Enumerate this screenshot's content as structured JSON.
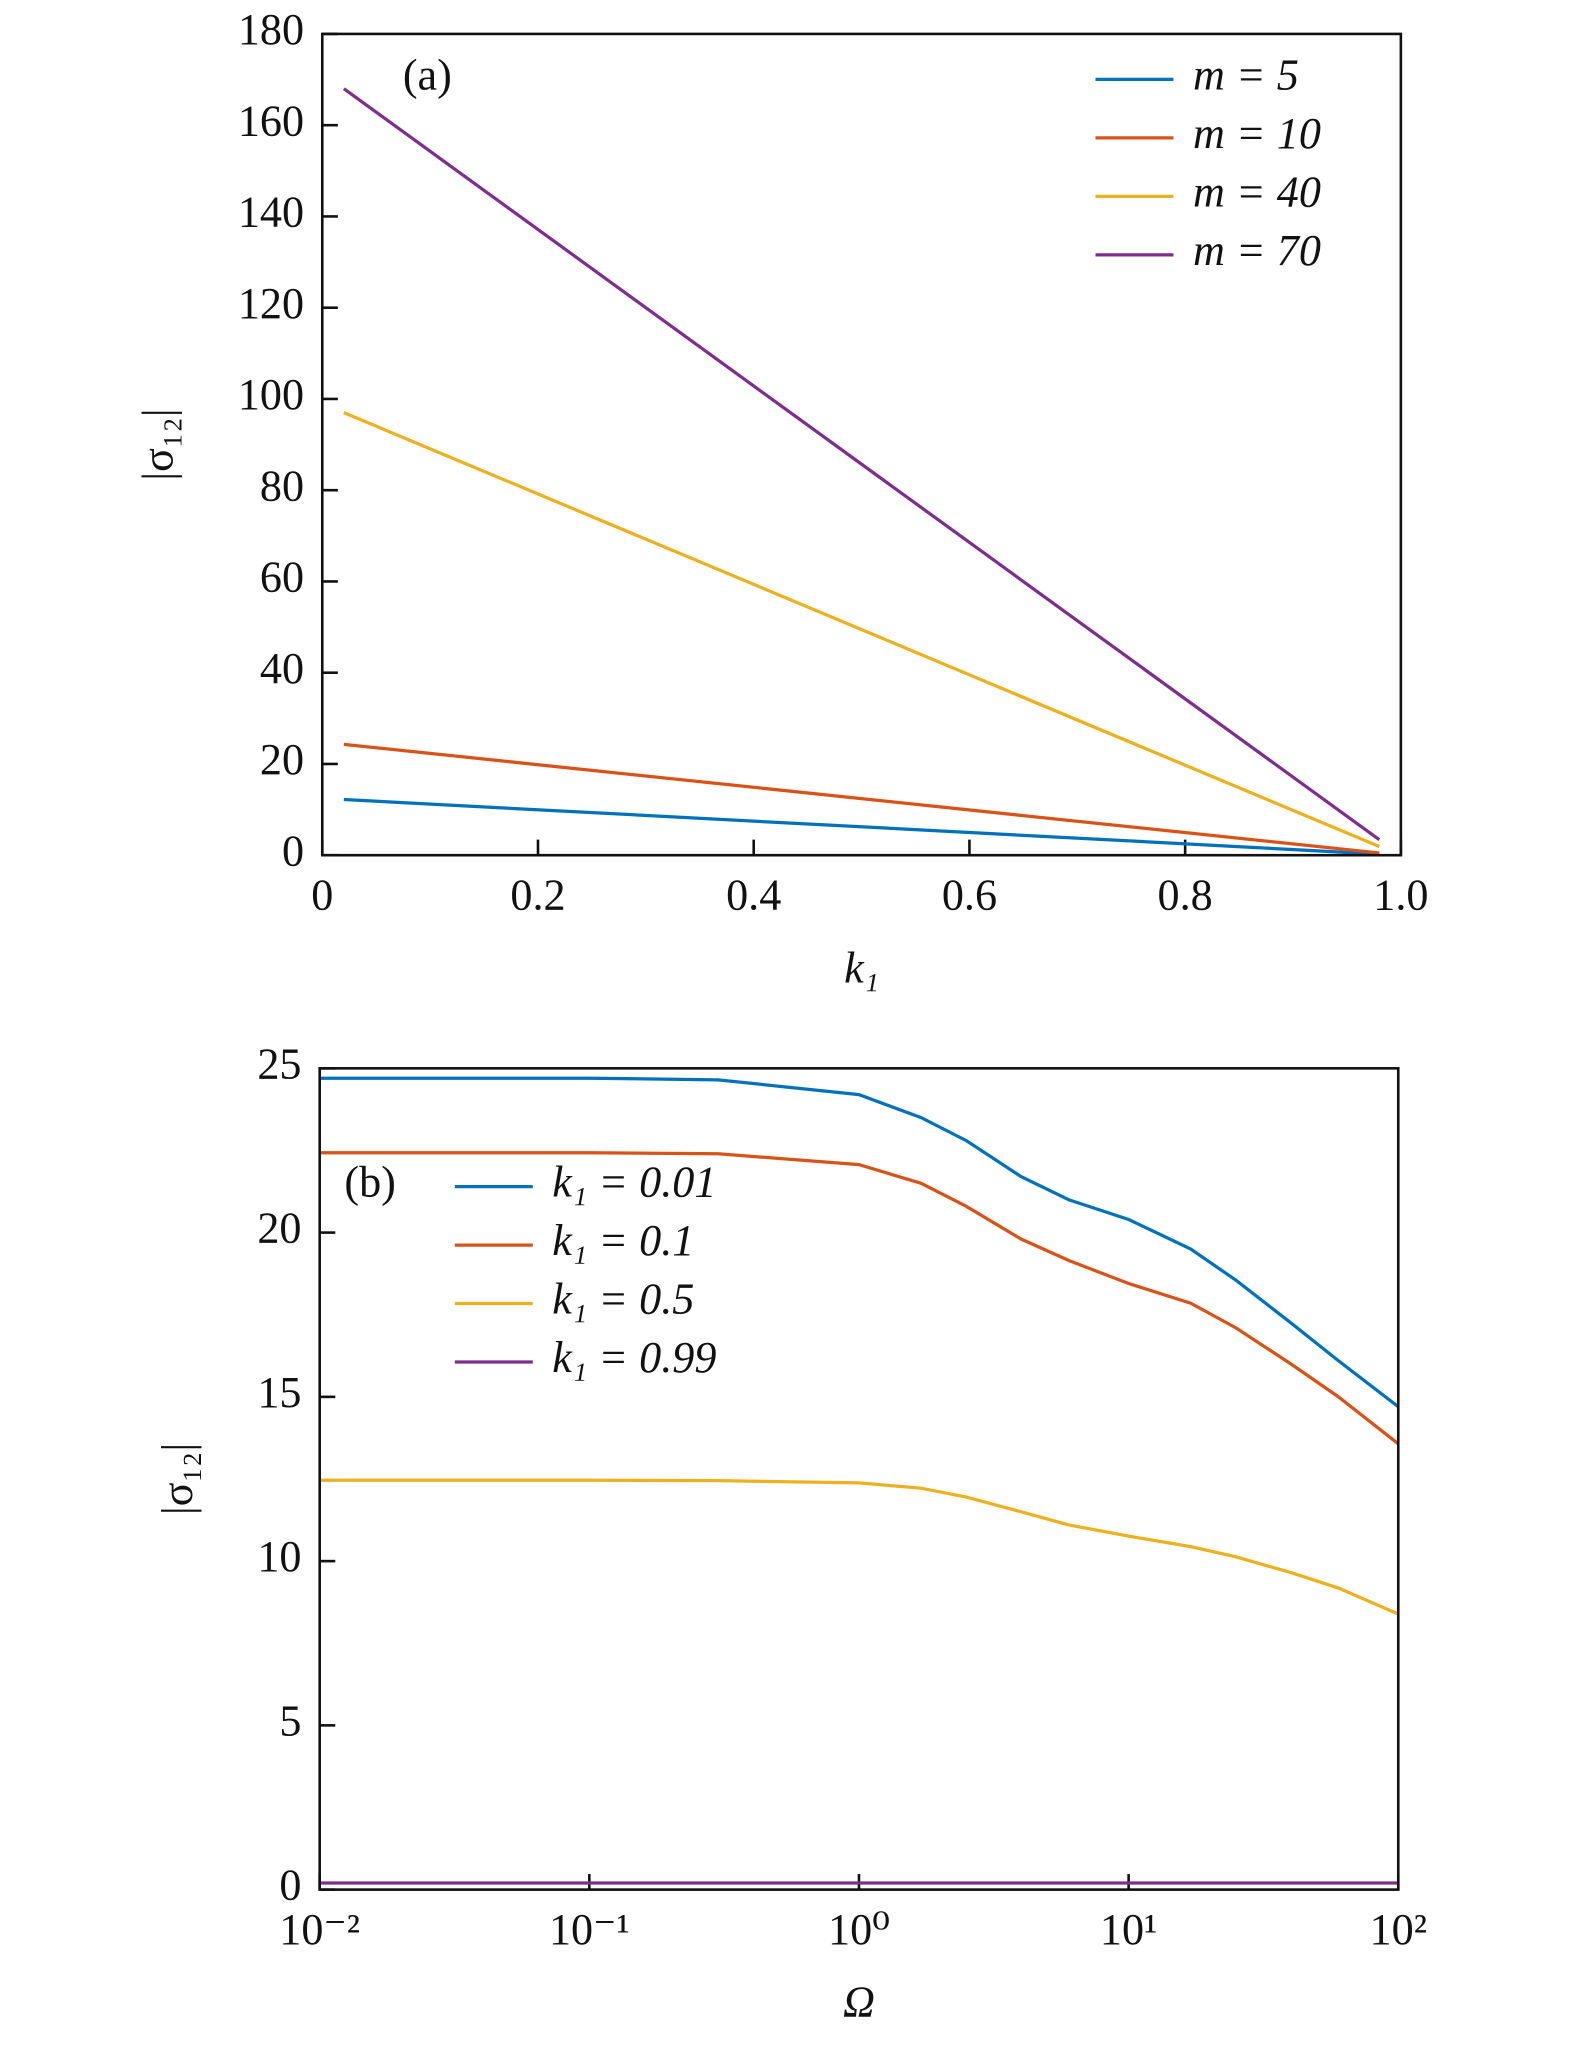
{
  "chart_data": [
    {
      "type": "line",
      "annotation": "(a)",
      "xlabel": "k₁",
      "ylabel": "|σ₁₂|",
      "x": [
        0.02,
        0.98
      ],
      "series": [
        {
          "name": "m = 5",
          "color": "#0072bd",
          "values": [
            12.2,
            0.25
          ]
        },
        {
          "name": "m = 10",
          "color": "#d95319",
          "values": [
            24.3,
            0.5
          ]
        },
        {
          "name": "m = 40",
          "color": "#edb120",
          "values": [
            97,
            1.9
          ]
        },
        {
          "name": "m = 70",
          "color": "#7e2f8e",
          "values": [
            168,
            3.4
          ]
        }
      ],
      "xlim": [
        0,
        1
      ],
      "ylim": [
        0,
        180
      ],
      "xticks": [
        0,
        0.2,
        0.4,
        0.6,
        0.8,
        {
          "value": 1,
          "label": "1.0"
        }
      ],
      "yticks": [
        0,
        20,
        40,
        60,
        80,
        100,
        120,
        140,
        160,
        180
      ],
      "legend": "upper right"
    },
    {
      "type": "line",
      "annotation": "(b)",
      "xlabel": "Ω",
      "ylabel": "|σ₁₂|",
      "xscale": "log",
      "x": [
        0.01,
        0.1,
        0.3,
        1,
        1.7,
        2.5,
        4,
        6,
        10,
        17,
        25,
        40,
        60,
        100
      ],
      "series": [
        {
          "name": "k₁ = 0.01",
          "color": "#0072bd",
          "values": [
            24.7,
            24.7,
            24.65,
            24.2,
            23.5,
            22.8,
            21.7,
            21.0,
            20.4,
            19.5,
            18.55,
            17.25,
            16.1,
            14.7
          ]
        },
        {
          "name": "k₁ = 0.1",
          "color": "#d95319",
          "values": [
            22.43,
            22.43,
            22.4,
            22.07,
            21.5,
            20.8,
            19.8,
            19.15,
            18.45,
            17.85,
            17.1,
            16.0,
            15.0,
            13.57
          ]
        },
        {
          "name": "k₁ = 0.5",
          "color": "#edb120",
          "values": [
            12.46,
            12.46,
            12.45,
            12.38,
            12.22,
            11.95,
            11.5,
            11.1,
            10.76,
            10.44,
            10.13,
            9.65,
            9.18,
            8.39
          ]
        },
        {
          "name": "k₁ = 0.99",
          "color": "#7e2f8e",
          "values": [
            0.2,
            0.2,
            0.2,
            0.2,
            0.2,
            0.2,
            0.2,
            0.2,
            0.2,
            0.2,
            0.2,
            0.2,
            0.2,
            0.2
          ]
        }
      ],
      "xlim": [
        0.01,
        100
      ],
      "ylim": [
        0,
        25
      ],
      "xticks": [
        {
          "value": 0.01,
          "label": "10⁻²"
        },
        {
          "value": 0.1,
          "label": "10⁻¹"
        },
        {
          "value": 1,
          "label": "10⁰"
        },
        {
          "value": 10,
          "label": "10¹"
        },
        {
          "value": 100,
          "label": "10²"
        }
      ],
      "yticks": [
        0,
        5,
        10,
        15,
        20,
        25
      ],
      "legend": "upper left"
    }
  ]
}
